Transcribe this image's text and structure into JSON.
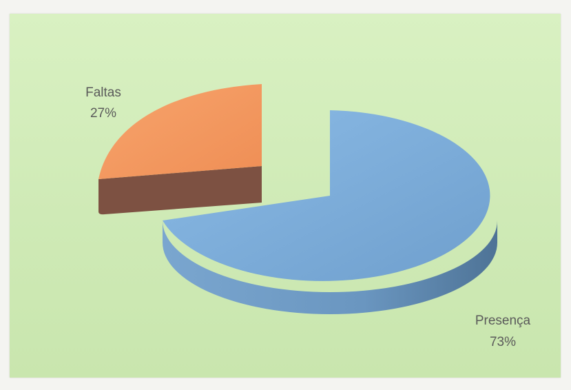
{
  "chart_data": {
    "type": "pie",
    "title": "",
    "slices": [
      {
        "name": "Faltas",
        "value": 27,
        "percent_label": "27%",
        "color": "#f59a62",
        "side_color": "#7a5040",
        "exploded": true
      },
      {
        "name": "Presença",
        "value": 73,
        "percent_label": "73%",
        "color": "#7fb0dd",
        "side_color": "#5f88ad",
        "exploded": false
      }
    ],
    "style": "3d-exploded",
    "background_color": "#d4edbb",
    "legend": "none"
  }
}
